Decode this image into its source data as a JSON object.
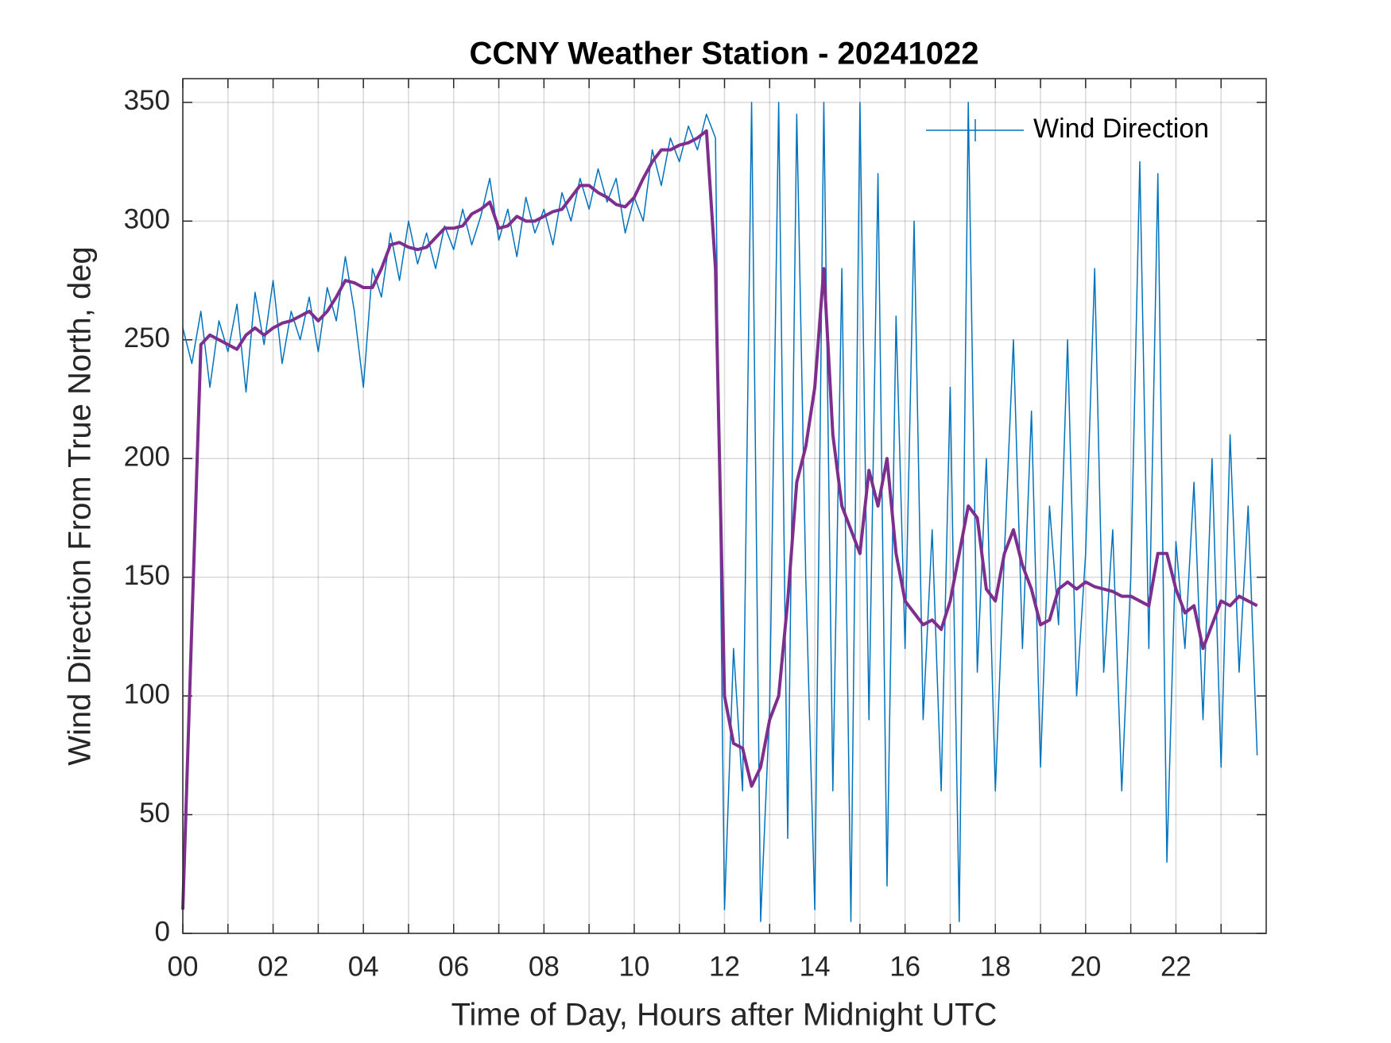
{
  "chart_data": {
    "type": "line",
    "title": "CCNY Weather Station - 20241022",
    "xlabel": "Time of Day, Hours after Midnight UTC",
    "ylabel": "Wind Direction From True North, deg",
    "x": [
      0,
      0.2,
      0.4,
      0.6,
      0.8,
      1,
      1.2,
      1.4,
      1.6,
      1.8,
      2,
      2.2,
      2.4,
      2.6,
      2.8,
      3,
      3.2,
      3.4,
      3.6,
      3.8,
      4,
      4.2,
      4.4,
      4.6,
      4.8,
      5,
      5.2,
      5.4,
      5.6,
      5.8,
      6,
      6.2,
      6.4,
      6.6,
      6.8,
      7,
      7.2,
      7.4,
      7.6,
      7.8,
      8,
      8.2,
      8.4,
      8.6,
      8.8,
      9,
      9.2,
      9.4,
      9.6,
      9.8,
      10,
      10.2,
      10.4,
      10.6,
      10.8,
      11,
      11.2,
      11.4,
      11.6,
      11.8,
      12,
      12.2,
      12.4,
      12.6,
      12.8,
      13,
      13.2,
      13.4,
      13.6,
      13.8,
      14,
      14.2,
      14.4,
      14.6,
      14.8,
      15,
      15.2,
      15.4,
      15.6,
      15.8,
      16,
      16.2,
      16.4,
      16.6,
      16.8,
      17,
      17.2,
      17.4,
      17.6,
      17.8,
      18,
      18.2,
      18.4,
      18.6,
      18.8,
      19,
      19.2,
      19.4,
      19.6,
      19.8,
      20,
      20.2,
      20.4,
      20.6,
      20.8,
      21,
      21.2,
      21.4,
      21.6,
      21.8,
      22,
      22.2,
      22.4,
      22.6,
      22.8,
      23,
      23.2,
      23.4,
      23.6,
      23.8
    ],
    "series": [
      {
        "name": "Wind Direction",
        "color": "#0072bd",
        "width": 1.5,
        "values": [
          255,
          240,
          262,
          230,
          258,
          245,
          265,
          228,
          270,
          248,
          275,
          240,
          262,
          250,
          268,
          245,
          272,
          258,
          285,
          262,
          230,
          280,
          268,
          295,
          275,
          300,
          282,
          295,
          280,
          298,
          288,
          305,
          290,
          302,
          318,
          292,
          305,
          285,
          310,
          295,
          305,
          290,
          312,
          300,
          318,
          305,
          322,
          308,
          318,
          295,
          310,
          300,
          330,
          315,
          335,
          325,
          340,
          330,
          345,
          335,
          10,
          120,
          60,
          350,
          5,
          95,
          350,
          40,
          345,
          150,
          10,
          350,
          60,
          280,
          5,
          350,
          90,
          320,
          20,
          260,
          120,
          300,
          90,
          170,
          60,
          230,
          5,
          350,
          110,
          200,
          60,
          160,
          250,
          120,
          220,
          70,
          180,
          130,
          250,
          100,
          160,
          280,
          110,
          170,
          60,
          150,
          325,
          120,
          320,
          30,
          165,
          120,
          190,
          90,
          200,
          70,
          210,
          110,
          180,
          75
        ]
      },
      {
        "color": "#7e2f8e",
        "width": 4,
        "values": [
          10,
          130,
          248,
          252,
          250,
          248,
          246,
          252,
          255,
          252,
          255,
          257,
          258,
          260,
          262,
          258,
          262,
          268,
          275,
          274,
          272,
          272,
          280,
          290,
          291,
          289,
          288,
          289,
          293,
          297,
          297,
          298,
          303,
          305,
          308,
          297,
          298,
          302,
          300,
          300,
          302,
          304,
          305,
          310,
          315,
          315,
          312,
          310,
          307,
          306,
          310,
          318,
          325,
          330,
          330,
          332,
          333,
          335,
          338,
          280,
          100,
          80,
          78,
          62,
          70,
          90,
          100,
          140,
          190,
          205,
          230,
          280,
          210,
          180,
          170,
          160,
          195,
          180,
          200,
          160,
          140,
          135,
          130,
          132,
          128,
          140,
          160,
          180,
          175,
          145,
          140,
          160,
          170,
          155,
          145,
          130,
          132,
          145,
          148,
          145,
          148,
          146,
          145,
          144,
          142,
          142,
          140,
          138,
          160,
          160,
          145,
          135,
          138,
          120,
          130,
          140,
          138,
          142,
          140,
          138
        ]
      }
    ],
    "xlim": [
      0,
      24
    ],
    "xticks": [
      {
        "value": 0,
        "label": "00"
      },
      {
        "value": 2,
        "label": "02"
      },
      {
        "value": 4,
        "label": "04"
      },
      {
        "value": 6,
        "label": "06"
      },
      {
        "value": 8,
        "label": "08"
      },
      {
        "value": 10,
        "label": "10"
      },
      {
        "value": 12,
        "label": "12"
      },
      {
        "value": 14,
        "label": "14"
      },
      {
        "value": 16,
        "label": "16"
      },
      {
        "value": 18,
        "label": "18"
      },
      {
        "value": 20,
        "label": "20"
      },
      {
        "value": 22,
        "label": "22"
      }
    ],
    "xminorticks": [
      1,
      3,
      5,
      7,
      9,
      11,
      13,
      15,
      17,
      19,
      21,
      23
    ],
    "ylim": [
      0,
      360
    ],
    "yticks": [
      0,
      50,
      100,
      150,
      200,
      250,
      300,
      350
    ],
    "grid": true,
    "legend": "northeast"
  }
}
